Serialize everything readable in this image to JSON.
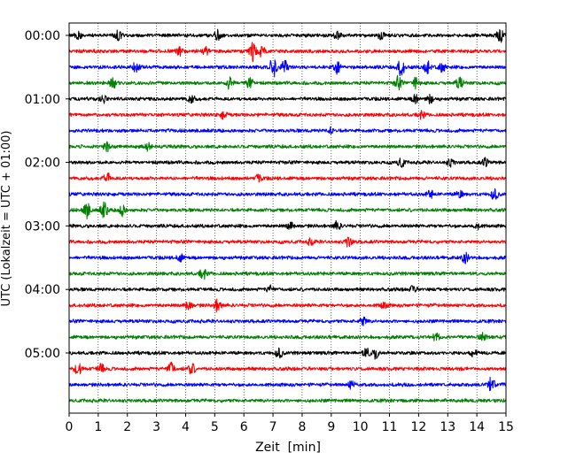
{
  "chart_data": {
    "type": "line",
    "title": "",
    "xlabel": "Zeit  [min]",
    "ylabel": "UTC (Lokalzeit = UTC + 01:00)",
    "xlim": [
      0,
      15
    ],
    "x_ticks": [
      "0",
      "1",
      "2",
      "3",
      "4",
      "5",
      "6",
      "7",
      "8",
      "9",
      "10",
      "11",
      "12",
      "13",
      "14",
      "15"
    ],
    "y_ticks": [
      "00:00",
      "01:00",
      "02:00",
      "03:00",
      "04:00",
      "05:00"
    ],
    "traces_per_hour": 4,
    "trace_minutes": 15,
    "grid": "vertical dotted at each minute",
    "colors": [
      "#000000",
      "#ff0000",
      "#0000ff",
      "#008000"
    ],
    "series": [
      {
        "start": "00:00",
        "color": "#000000",
        "events": [
          {
            "t": 0.3,
            "a": 1.0
          },
          {
            "t": 1.7,
            "a": 1.4
          },
          {
            "t": 5.1,
            "a": 1.4
          },
          {
            "t": 9.2,
            "a": 0.9
          },
          {
            "t": 10.7,
            "a": 0.8
          },
          {
            "t": 14.8,
            "a": 1.6
          }
        ]
      },
      {
        "start": "00:15",
        "color": "#ff0000",
        "events": [
          {
            "t": 3.8,
            "a": 1.0
          },
          {
            "t": 4.7,
            "a": 0.9
          },
          {
            "t": 6.3,
            "a": 2.6
          },
          {
            "t": 6.6,
            "a": 1.5
          }
        ]
      },
      {
        "start": "00:30",
        "color": "#0000ff",
        "events": [
          {
            "t": 2.3,
            "a": 1.3
          },
          {
            "t": 7.0,
            "a": 3.2
          },
          {
            "t": 7.4,
            "a": 1.6
          },
          {
            "t": 9.2,
            "a": 1.5
          },
          {
            "t": 11.4,
            "a": 2.3
          },
          {
            "t": 12.3,
            "a": 1.6
          },
          {
            "t": 12.8,
            "a": 1.2
          }
        ]
      },
      {
        "start": "00:45",
        "color": "#008000",
        "events": [
          {
            "t": 1.5,
            "a": 1.4
          },
          {
            "t": 5.5,
            "a": 1.5
          },
          {
            "t": 6.2,
            "a": 2.0
          },
          {
            "t": 11.3,
            "a": 1.6
          },
          {
            "t": 11.9,
            "a": 1.3
          },
          {
            "t": 13.4,
            "a": 1.5
          }
        ]
      },
      {
        "start": "01:00",
        "color": "#000000",
        "events": [
          {
            "t": 1.2,
            "a": 1.0
          },
          {
            "t": 4.2,
            "a": 1.0
          },
          {
            "t": 11.9,
            "a": 1.2
          },
          {
            "t": 12.4,
            "a": 1.0
          }
        ]
      },
      {
        "start": "01:15",
        "color": "#ff0000",
        "events": [
          {
            "t": 5.3,
            "a": 0.9
          },
          {
            "t": 12.1,
            "a": 0.9
          }
        ]
      },
      {
        "start": "01:30",
        "color": "#0000ff",
        "events": [
          {
            "t": 9.0,
            "a": 0.8
          }
        ]
      },
      {
        "start": "01:45",
        "color": "#008000",
        "events": [
          {
            "t": 1.3,
            "a": 1.2
          },
          {
            "t": 2.7,
            "a": 0.9
          }
        ]
      },
      {
        "start": "02:00",
        "color": "#000000",
        "events": [
          {
            "t": 11.4,
            "a": 1.2
          },
          {
            "t": 13.1,
            "a": 1.0
          },
          {
            "t": 14.3,
            "a": 1.0
          }
        ]
      },
      {
        "start": "02:15",
        "color": "#ff0000",
        "events": [
          {
            "t": 1.3,
            "a": 1.4
          },
          {
            "t": 6.5,
            "a": 0.9
          }
        ]
      },
      {
        "start": "02:30",
        "color": "#0000ff",
        "events": [
          {
            "t": 12.4,
            "a": 0.9
          },
          {
            "t": 13.4,
            "a": 1.0
          },
          {
            "t": 14.6,
            "a": 1.5
          }
        ]
      },
      {
        "start": "02:45",
        "color": "#008000",
        "events": [
          {
            "t": 0.6,
            "a": 2.2
          },
          {
            "t": 1.2,
            "a": 2.0
          },
          {
            "t": 1.8,
            "a": 1.6
          }
        ]
      },
      {
        "start": "03:00",
        "color": "#000000",
        "events": [
          {
            "t": 7.6,
            "a": 1.0
          },
          {
            "t": 9.2,
            "a": 1.1
          },
          {
            "t": 14.0,
            "a": 0.8
          }
        ]
      },
      {
        "start": "03:15",
        "color": "#ff0000",
        "events": [
          {
            "t": 8.3,
            "a": 0.8
          },
          {
            "t": 9.6,
            "a": 1.3
          }
        ]
      },
      {
        "start": "03:30",
        "color": "#0000ff",
        "events": [
          {
            "t": 3.8,
            "a": 1.0
          },
          {
            "t": 13.6,
            "a": 1.3
          }
        ]
      },
      {
        "start": "03:45",
        "color": "#008000",
        "events": [
          {
            "t": 4.6,
            "a": 1.4
          }
        ]
      },
      {
        "start": "04:00",
        "color": "#000000",
        "events": [
          {
            "t": 6.9,
            "a": 0.8
          },
          {
            "t": 11.8,
            "a": 0.8
          }
        ]
      },
      {
        "start": "04:15",
        "color": "#ff0000",
        "events": [
          {
            "t": 4.1,
            "a": 1.3
          },
          {
            "t": 5.1,
            "a": 1.7
          },
          {
            "t": 10.8,
            "a": 0.9
          }
        ]
      },
      {
        "start": "04:30",
        "color": "#0000ff",
        "events": [
          {
            "t": 10.1,
            "a": 1.2
          }
        ]
      },
      {
        "start": "04:45",
        "color": "#008000",
        "events": [
          {
            "t": 12.6,
            "a": 0.9
          },
          {
            "t": 14.2,
            "a": 0.9
          }
        ]
      },
      {
        "start": "05:00",
        "color": "#000000",
        "events": [
          {
            "t": 7.2,
            "a": 1.3
          },
          {
            "t": 10.2,
            "a": 1.1
          },
          {
            "t": 10.5,
            "a": 1.5
          },
          {
            "t": 13.9,
            "a": 0.9
          }
        ]
      },
      {
        "start": "05:15",
        "color": "#ff0000",
        "events": [
          {
            "t": 0.3,
            "a": 1.8
          },
          {
            "t": 1.1,
            "a": 1.2
          },
          {
            "t": 3.5,
            "a": 1.7
          },
          {
            "t": 4.2,
            "a": 1.5
          }
        ]
      },
      {
        "start": "05:30",
        "color": "#0000ff",
        "events": [
          {
            "t": 9.7,
            "a": 1.0
          },
          {
            "t": 14.5,
            "a": 2.0
          }
        ]
      },
      {
        "start": "05:45",
        "color": "#008000",
        "events": []
      }
    ]
  }
}
